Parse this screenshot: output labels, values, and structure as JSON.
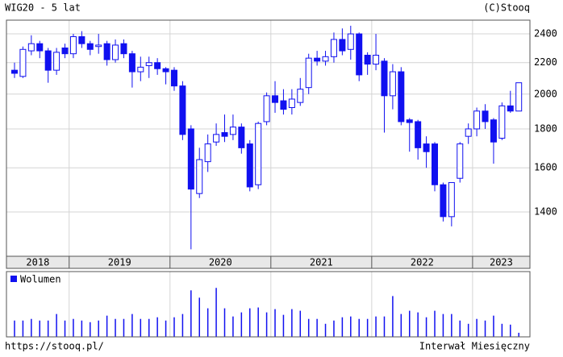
{
  "chart_data": {
    "type": "candlestick",
    "title": "WIG20 - 5 lat",
    "source": "(C)Stooq",
    "footer_left": "https://stooq.pl/",
    "footer_right": "Interwał Miesięczny",
    "color": "#1010f0",
    "log_y": true,
    "grid": true,
    "ylim": [
      1224,
      2502
    ],
    "yticks": [
      1400,
      1600,
      1800,
      2000,
      2200,
      2400
    ],
    "year_boundaries": [
      7,
      19,
      31,
      43,
      55
    ],
    "year_labels": [
      "2018",
      "2019",
      "2020",
      "2021",
      "2022",
      "2023"
    ],
    "open": [
      2150,
      2110,
      2280,
      2330,
      2280,
      2150,
      2300,
      2260,
      2380,
      2330,
      2310,
      2330,
      2220,
      2330,
      2260,
      2140,
      2180,
      2200,
      2160,
      2150,
      2050,
      1800,
      1480,
      1630,
      1730,
      1780,
      1770,
      1810,
      1720,
      1520,
      1840,
      1990,
      1960,
      1920,
      1950,
      2040,
      2230,
      2210,
      2240,
      2360,
      2290,
      2400,
      2250,
      2190,
      2210,
      1990,
      2140,
      1850,
      1840,
      1720,
      1720,
      1520,
      1380,
      1550,
      1760,
      1800,
      1900,
      1850,
      1750,
      1930,
      1900
    ],
    "high": [
      2200,
      2310,
      2390,
      2350,
      2300,
      2300,
      2330,
      2400,
      2420,
      2350,
      2400,
      2350,
      2360,
      2360,
      2280,
      2240,
      2240,
      2230,
      2170,
      2170,
      2080,
      1820,
      1700,
      1770,
      1830,
      1880,
      1880,
      1830,
      1740,
      1840,
      2010,
      2080,
      2030,
      2030,
      2100,
      2260,
      2280,
      2280,
      2410,
      2440,
      2460,
      2410,
      2270,
      2400,
      2230,
      2190,
      2170,
      1860,
      1850,
      1760,
      1730,
      1530,
      1530,
      1730,
      1830,
      1920,
      1940,
      1860,
      1950,
      2020,
      2070
    ],
    "low": [
      2100,
      2100,
      2250,
      2230,
      2070,
      2120,
      2230,
      2230,
      2300,
      2250,
      2260,
      2180,
      2200,
      2230,
      2040,
      2080,
      2100,
      2120,
      2060,
      2020,
      1740,
      1250,
      1460,
      1580,
      1710,
      1730,
      1740,
      1670,
      1490,
      1500,
      1820,
      1890,
      1880,
      1880,
      1930,
      2000,
      2180,
      2180,
      2200,
      2250,
      2220,
      2080,
      2120,
      2150,
      1780,
      1910,
      1820,
      1680,
      1640,
      1600,
      1490,
      1360,
      1340,
      1530,
      1720,
      1760,
      1800,
      1620,
      1740,
      1890,
      1900
    ],
    "close": [
      2130,
      2290,
      2330,
      2280,
      2150,
      2270,
      2260,
      2380,
      2330,
      2290,
      2320,
      2220,
      2320,
      2260,
      2140,
      2170,
      2200,
      2160,
      2140,
      2050,
      1770,
      1500,
      1640,
      1720,
      1770,
      1760,
      1810,
      1700,
      1510,
      1830,
      1990,
      1950,
      1910,
      1970,
      2030,
      2230,
      2210,
      2240,
      2360,
      2280,
      2400,
      2120,
      2190,
      2250,
      1990,
      2140,
      1840,
      1835,
      1700,
      1680,
      1520,
      1380,
      1530,
      1720,
      1800,
      1900,
      1840,
      1730,
      1930,
      1900,
      2070
    ],
    "volume_label": "Wolumen",
    "volume_lim": [
      0,
      80
    ],
    "volume": [
      20,
      20,
      22,
      20,
      20,
      28,
      20,
      22,
      20,
      18,
      20,
      26,
      22,
      22,
      28,
      22,
      22,
      24,
      20,
      24,
      28,
      57,
      48,
      35,
      60,
      35,
      25,
      30,
      35,
      36,
      30,
      34,
      27,
      34,
      32,
      22,
      22,
      16,
      20,
      24,
      25,
      22,
      22,
      25,
      25,
      50,
      28,
      32,
      30,
      24,
      32,
      28,
      28,
      20,
      16,
      22,
      20,
      26,
      16,
      15,
      5
    ]
  }
}
